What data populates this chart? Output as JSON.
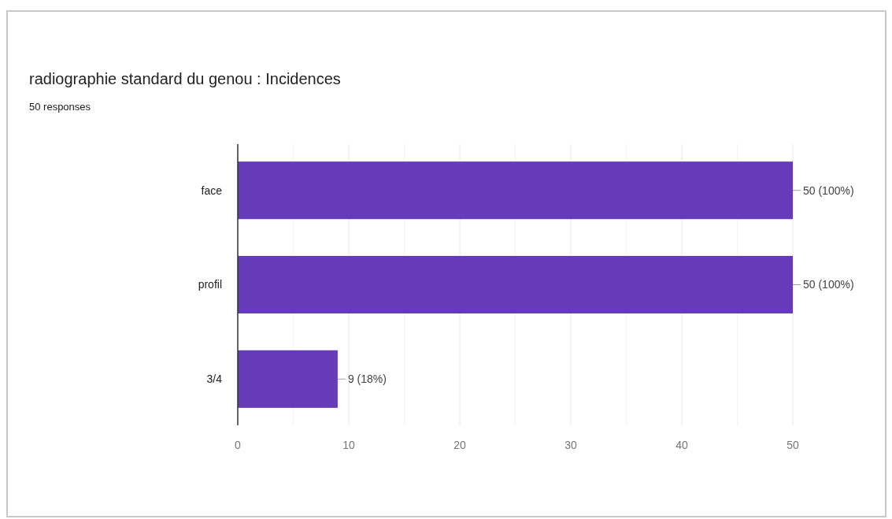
{
  "chart_data": {
    "type": "bar",
    "orientation": "horizontal",
    "title": "radiographie standard du genou : Incidences",
    "subtitle": "50 responses",
    "categories": [
      "face",
      "profil",
      "3/4"
    ],
    "values": [
      50,
      50,
      9
    ],
    "color": "#673ab7",
    "value_labels": [
      "50 (100%)",
      "50 (100%)",
      "9 (18%)"
    ],
    "xlim": [
      0,
      50
    ],
    "xticks": [
      0,
      {
        "value": 5,
        "label": null
      },
      10,
      {
        "value": 15,
        "label": null
      },
      20,
      {
        "value": 25,
        "label": null
      },
      30,
      {
        "value": 35,
        "label": null
      },
      40,
      {
        "value": 45,
        "label": null
      },
      50
    ],
    "grid": "x"
  }
}
